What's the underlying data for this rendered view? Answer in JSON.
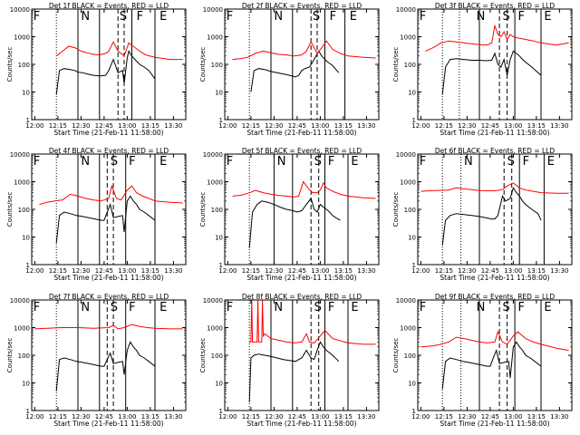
{
  "figure": {
    "type": "grid-of-line-charts",
    "rows": 3,
    "cols": 3
  },
  "shared": {
    "ylabel": "Counts/sec",
    "xlabel": "Start Time (21-Feb-11 11:58:00)",
    "x_ticks": [
      "12:00",
      "12:15",
      "12:30",
      "12:45",
      "13:00",
      "13:15",
      "13:30"
    ],
    "y_ticks": [
      "1",
      "10",
      "100",
      "1000",
      "10000"
    ],
    "ylim": [
      1,
      10000
    ],
    "yscale": "log",
    "xlim_minutes_from_12_00": [
      0,
      100
    ],
    "series_colors": {
      "Events": "#000000",
      "LLD": "#ff0000"
    }
  },
  "chart_data": [
    {
      "type": "line",
      "title": "Det 1f BLACK = Events, RED = LLD",
      "marker_labels": [
        "F",
        "N",
        "S",
        "F",
        "E"
      ],
      "series": [
        {
          "name": "Events",
          "color": "#000000",
          "x": [
            16,
            18,
            21,
            25,
            28,
            30,
            33,
            36,
            40,
            44,
            48,
            50,
            53,
            56,
            59,
            60,
            62,
            63,
            65,
            67,
            70,
            73,
            76,
            80
          ],
          "y": [
            8,
            60,
            70,
            65,
            60,
            52,
            50,
            45,
            40,
            38,
            40,
            60,
            150,
            50,
            60,
            20,
            170,
            300,
            200,
            150,
            100,
            80,
            60,
            30
          ]
        },
        {
          "name": "LLD",
          "color": "#ff0000",
          "x": [
            16,
            20,
            24,
            28,
            32,
            36,
            40,
            44,
            48,
            50,
            53,
            56,
            60,
            63,
            66,
            70,
            74,
            80,
            90,
            98
          ],
          "y": [
            200,
            300,
            450,
            400,
            300,
            260,
            230,
            220,
            250,
            300,
            650,
            300,
            200,
            600,
            450,
            300,
            220,
            180,
            150,
            150
          ]
        }
      ]
    },
    {
      "type": "line",
      "title": "Det 2f BLACK = Events, RED = LLD",
      "marker_labels": [
        "F",
        "N",
        "S",
        "F",
        "E"
      ],
      "series": [
        {
          "name": "Events",
          "color": "#000000",
          "x": [
            17,
            19,
            22,
            26,
            30,
            34,
            38,
            42,
            46,
            48,
            50,
            52,
            55,
            58,
            61,
            63,
            65,
            67,
            70,
            74
          ],
          "y": [
            10,
            60,
            70,
            65,
            55,
            50,
            45,
            40,
            35,
            40,
            60,
            70,
            80,
            150,
            300,
            200,
            150,
            120,
            90,
            50
          ]
        },
        {
          "name": "LLD",
          "color": "#ff0000",
          "x": [
            5,
            10,
            15,
            20,
            25,
            30,
            35,
            40,
            45,
            50,
            53,
            56,
            60,
            63,
            66,
            70,
            75,
            80,
            90,
            98
          ],
          "y": [
            150,
            160,
            180,
            250,
            300,
            260,
            230,
            220,
            200,
            220,
            300,
            650,
            250,
            400,
            700,
            350,
            250,
            200,
            180,
            170
          ]
        }
      ]
    },
    {
      "type": "line",
      "title": "Det 3f BLACK = Events, RED = LLD",
      "marker_labels": [
        "F",
        "N",
        "S",
        "F",
        "E"
      ],
      "series": [
        {
          "name": "Events",
          "color": "#000000",
          "x": [
            16,
            18,
            21,
            25,
            30,
            35,
            40,
            44,
            48,
            50,
            52,
            54,
            56,
            58,
            60,
            62,
            64,
            66,
            68,
            70,
            74,
            80
          ],
          "y": [
            8,
            80,
            150,
            160,
            150,
            140,
            140,
            135,
            140,
            250,
            100,
            80,
            150,
            40,
            150,
            300,
            250,
            200,
            150,
            120,
            80,
            40
          ]
        },
        {
          "name": "LLD",
          "color": "#ff0000",
          "x": [
            5,
            10,
            15,
            20,
            25,
            30,
            35,
            40,
            45,
            48,
            50,
            52,
            54,
            56,
            58,
            60,
            62,
            65,
            70,
            75,
            80,
            90,
            98
          ],
          "y": [
            300,
            400,
            600,
            700,
            650,
            600,
            550,
            520,
            500,
            600,
            2500,
            1200,
            1000,
            1500,
            800,
            1200,
            1000,
            900,
            800,
            700,
            600,
            500,
            600
          ]
        }
      ]
    },
    {
      "type": "line",
      "title": "Det 4f BLACK = Events, RED = LLD",
      "marker_labels": [
        "F",
        "N",
        "S",
        "F",
        "E"
      ],
      "series": [
        {
          "name": "Events",
          "color": "#000000",
          "x": [
            16,
            18,
            21,
            25,
            29,
            33,
            37,
            41,
            45,
            47,
            49,
            51,
            53,
            56,
            59,
            60,
            62,
            64,
            66,
            68,
            70,
            73,
            76,
            80
          ],
          "y": [
            6,
            60,
            80,
            70,
            60,
            55,
            50,
            45,
            40,
            40,
            80,
            150,
            50,
            55,
            60,
            15,
            200,
            300,
            200,
            150,
            100,
            80,
            60,
            40
          ]
        },
        {
          "name": "LLD",
          "color": "#ff0000",
          "x": [
            5,
            10,
            15,
            20,
            25,
            30,
            35,
            40,
            45,
            50,
            52,
            55,
            58,
            62,
            65,
            68,
            72,
            76,
            80,
            90,
            98
          ],
          "y": [
            150,
            180,
            200,
            220,
            350,
            300,
            250,
            220,
            200,
            250,
            700,
            250,
            220,
            500,
            700,
            400,
            300,
            250,
            200,
            180,
            170
          ]
        }
      ]
    },
    {
      "type": "line",
      "title": "Det 5f BLACK = Events, RED = LLD",
      "marker_labels": [
        "F",
        "N",
        "S",
        "F",
        "E"
      ],
      "series": [
        {
          "name": "Events",
          "color": "#000000",
          "x": [
            16,
            18,
            21,
            24,
            28,
            32,
            36,
            40,
            44,
            47,
            50,
            53,
            56,
            58,
            60,
            62,
            64,
            66,
            68,
            70,
            72,
            75
          ],
          "y": [
            4,
            80,
            150,
            200,
            180,
            150,
            120,
            100,
            90,
            80,
            90,
            150,
            250,
            100,
            80,
            150,
            120,
            100,
            80,
            60,
            50,
            40
          ]
        },
        {
          "name": "LLD",
          "color": "#ff0000",
          "x": [
            5,
            10,
            15,
            20,
            25,
            30,
            35,
            40,
            45,
            48,
            51,
            54,
            57,
            60,
            62,
            64,
            66,
            70,
            75,
            80,
            90,
            98
          ],
          "y": [
            300,
            320,
            380,
            480,
            400,
            350,
            320,
            300,
            280,
            300,
            1000,
            600,
            400,
            400,
            500,
            900,
            600,
            450,
            350,
            300,
            260,
            250
          ]
        }
      ]
    },
    {
      "type": "line",
      "title": "Det 6f BLACK = Events, RED = LLD",
      "marker_labels": [
        "F",
        "N",
        "S",
        "F",
        "E"
      ],
      "series": [
        {
          "name": "Events",
          "color": "#000000",
          "x": [
            16,
            18,
            21,
            25,
            30,
            35,
            40,
            44,
            48,
            50,
            52,
            55,
            57,
            60,
            62,
            64,
            66,
            68,
            70,
            74,
            78,
            80
          ],
          "y": [
            5,
            40,
            60,
            70,
            65,
            60,
            55,
            50,
            45,
            45,
            60,
            300,
            200,
            250,
            600,
            400,
            300,
            200,
            150,
            100,
            70,
            40
          ]
        },
        {
          "name": "LLD",
          "color": "#ff0000",
          "x": [
            2,
            10,
            20,
            25,
            30,
            40,
            50,
            55,
            58,
            62,
            66,
            70,
            75,
            80,
            90,
            98
          ],
          "y": [
            450,
            480,
            500,
            600,
            550,
            480,
            470,
            520,
            700,
            900,
            600,
            500,
            450,
            400,
            380,
            380
          ]
        }
      ]
    },
    {
      "type": "line",
      "title": "Det 7f BLACK = Events, RED = LLD",
      "marker_labels": [
        "F",
        "N",
        "S",
        "F",
        "E"
      ],
      "series": [
        {
          "name": "Events",
          "color": "#000000",
          "x": [
            16,
            18,
            21,
            25,
            29,
            33,
            37,
            41,
            45,
            47,
            49,
            51,
            53,
            56,
            59,
            60,
            62,
            64,
            66,
            68,
            70,
            73,
            76,
            80
          ],
          "y": [
            5,
            70,
            80,
            70,
            60,
            55,
            50,
            45,
            40,
            40,
            70,
            120,
            50,
            55,
            60,
            20,
            150,
            300,
            200,
            150,
            100,
            80,
            60,
            40
          ]
        },
        {
          "name": "LLD",
          "color": "#ff0000",
          "x": [
            2,
            10,
            20,
            30,
            40,
            50,
            53,
            56,
            60,
            65,
            70,
            75,
            80,
            90,
            98
          ],
          "y": [
            900,
            950,
            1000,
            1000,
            950,
            1000,
            1200,
            900,
            1000,
            1300,
            1100,
            1000,
            950,
            900,
            900
          ]
        }
      ]
    },
    {
      "type": "line",
      "title": "Det 8f BLACK = Events, RED = LLD",
      "marker_labels": [
        "F",
        "N",
        "S",
        "F",
        "E"
      ],
      "series": [
        {
          "name": "Events",
          "color": "#000000",
          "x": [
            16,
            17,
            19,
            22,
            26,
            30,
            34,
            38,
            42,
            46,
            48,
            50,
            53,
            56,
            58,
            60,
            62,
            64,
            66,
            70,
            74
          ],
          "y": [
            2,
            80,
            100,
            110,
            100,
            90,
            80,
            70,
            65,
            60,
            70,
            80,
            150,
            80,
            70,
            150,
            300,
            200,
            150,
            100,
            60
          ]
        },
        {
          "name": "LLD",
          "color": "#ff0000",
          "x": [
            16,
            17,
            17.5,
            18,
            21,
            21.5,
            22,
            24,
            24.5,
            25,
            26,
            30,
            35,
            40,
            45,
            50,
            53,
            55,
            58,
            62,
            65,
            70,
            80,
            90,
            98
          ],
          "y": [
            300,
            300,
            10000,
            300,
            300,
            10000,
            300,
            300,
            10000,
            500,
            600,
            400,
            350,
            300,
            280,
            300,
            600,
            300,
            280,
            500,
            800,
            400,
            280,
            250,
            250
          ]
        }
      ]
    },
    {
      "type": "line",
      "title": "Det 9f BLACK = Events, RED = LLD",
      "marker_labels": [
        "F",
        "N",
        "S",
        "F",
        "E"
      ],
      "series": [
        {
          "name": "Events",
          "color": "#000000",
          "x": [
            16,
            18,
            21,
            25,
            29,
            33,
            37,
            41,
            45,
            47,
            49,
            51,
            53,
            56,
            59,
            60,
            62,
            64,
            66,
            68,
            70,
            73,
            76,
            80
          ],
          "y": [
            6,
            60,
            80,
            70,
            60,
            55,
            50,
            45,
            40,
            40,
            80,
            150,
            50,
            55,
            60,
            15,
            200,
            300,
            200,
            150,
            100,
            80,
            60,
            40
          ]
        },
        {
          "name": "LLD",
          "color": "#ff0000",
          "x": [
            2,
            10,
            15,
            20,
            25,
            30,
            35,
            40,
            45,
            50,
            52,
            55,
            58,
            62,
            65,
            70,
            75,
            80,
            90,
            98
          ],
          "y": [
            200,
            220,
            250,
            300,
            450,
            400,
            350,
            300,
            280,
            300,
            700,
            300,
            250,
            500,
            700,
            400,
            300,
            250,
            180,
            150
          ]
        }
      ]
    }
  ]
}
